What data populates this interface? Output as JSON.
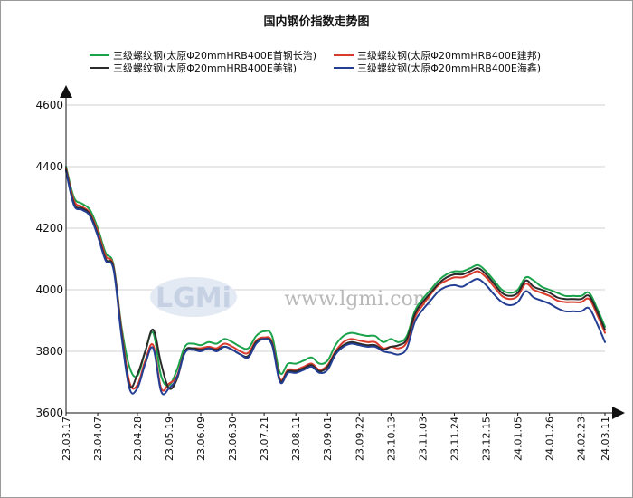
{
  "chart_data": {
    "type": "line",
    "title": "国内钢价指数走势图",
    "ylim": [
      3600,
      4600
    ],
    "yticks": [
      "3600",
      "3800",
      "4000",
      "4200",
      "4400",
      "4600"
    ],
    "x_tick_labels": [
      "23.03.17",
      "23.04.07",
      "23.04.28",
      "23.05.19",
      "23.06.09",
      "23.06.30",
      "23.07.21",
      "23.08.11",
      "23.09.01",
      "23.09.22",
      "23.10.13",
      "23.11.03",
      "23.11.24",
      "23.12.15",
      "24.01.05",
      "24.01.26",
      "24.02.23",
      "24.03.11"
    ],
    "grid": "horizontal",
    "legend_position": "top",
    "x": [
      "23.03.17",
      "23.03.22",
      "23.03.27",
      "23.04.01",
      "23.04.07",
      "23.04.11",
      "23.04.15",
      "23.04.20",
      "23.04.24",
      "23.04.28",
      "23.05.03",
      "23.05.08",
      "23.05.13",
      "23.05.19",
      "23.05.23",
      "23.05.28",
      "23.06.03",
      "23.06.09",
      "23.06.14",
      "23.06.19",
      "23.06.25",
      "23.06.30",
      "23.07.05",
      "23.07.10",
      "23.07.15",
      "23.07.21",
      "23.07.25",
      "23.08.01",
      "23.08.06",
      "23.08.11",
      "23.08.16",
      "23.08.21",
      "23.08.26",
      "23.09.01",
      "23.09.06",
      "23.09.11",
      "23.09.17",
      "23.09.22",
      "23.09.27",
      "23.10.03",
      "23.10.08",
      "23.10.13",
      "23.10.18",
      "23.10.23",
      "23.10.29",
      "23.11.03",
      "23.11.08",
      "23.11.14",
      "23.11.19",
      "23.11.24",
      "23.11.29",
      "23.12.05",
      "23.12.10",
      "23.12.15",
      "23.12.20",
      "23.12.25",
      "23.12.31",
      "24.01.05",
      "24.01.10",
      "24.01.15",
      "24.01.21",
      "24.01.26",
      "24.02.01",
      "24.02.06",
      "24.02.17",
      "24.02.23",
      "24.02.28",
      "24.03.04",
      "24.03.11"
    ],
    "series": [
      {
        "name": "三级螺纹钢(太原Φ20mmHRB400E首钢长治)",
        "color": "#1aa34a",
        "values": [
          4400,
          4300,
          4280,
          4260,
          4200,
          4120,
          4080,
          3880,
          3750,
          3720,
          3800,
          3860,
          3720,
          3690,
          3740,
          3815,
          3825,
          3820,
          3830,
          3825,
          3840,
          3830,
          3815,
          3810,
          3850,
          3865,
          3850,
          3730,
          3760,
          3760,
          3770,
          3780,
          3760,
          3770,
          3820,
          3850,
          3860,
          3855,
          3850,
          3850,
          3830,
          3840,
          3830,
          3850,
          3930,
          3970,
          4000,
          4030,
          4050,
          4060,
          4060,
          4070,
          4080,
          4060,
          4030,
          4000,
          3990,
          4000,
          4040,
          4030,
          4010,
          4000,
          3990,
          3980,
          3980,
          3980,
          3990,
          3940,
          3880
        ]
      },
      {
        "name": "三级螺纹钢(太原Φ20mmHRB400E建邦)",
        "color": "#d93a2b",
        "values": [
          4395,
          4290,
          4270,
          4250,
          4190,
          4110,
          4075,
          3870,
          3700,
          3690,
          3770,
          3820,
          3680,
          3695,
          3720,
          3800,
          3810,
          3810,
          3815,
          3810,
          3825,
          3815,
          3800,
          3795,
          3835,
          3845,
          3830,
          3710,
          3740,
          3740,
          3750,
          3760,
          3740,
          3755,
          3800,
          3830,
          3840,
          3835,
          3830,
          3830,
          3810,
          3815,
          3810,
          3830,
          3910,
          3950,
          3985,
          4015,
          4030,
          4040,
          4040,
          4050,
          4060,
          4040,
          4010,
          3980,
          3970,
          3980,
          4020,
          4000,
          3990,
          3980,
          3965,
          3960,
          3960,
          3960,
          3970,
          3920,
          3860
        ]
      },
      {
        "name": "三级螺纹钢(太原Φ20mmHRB400E美锦)",
        "color": "#2b2b2b",
        "values": [
          4390,
          4280,
          4265,
          4245,
          4180,
          4100,
          4070,
          3860,
          3690,
          3725,
          3800,
          3870,
          3760,
          3680,
          3710,
          3800,
          3810,
          3805,
          3810,
          3805,
          3815,
          3805,
          3790,
          3785,
          3830,
          3840,
          3825,
          3705,
          3735,
          3735,
          3745,
          3755,
          3735,
          3750,
          3795,
          3820,
          3830,
          3825,
          3820,
          3820,
          3805,
          3815,
          3820,
          3840,
          3920,
          3960,
          3990,
          4020,
          4040,
          4050,
          4050,
          4060,
          4070,
          4050,
          4020,
          3990,
          3980,
          3990,
          4030,
          4010,
          4000,
          3990,
          3975,
          3970,
          3970,
          3970,
          3980,
          3930,
          3870
        ]
      },
      {
        "name": "三级螺纹钢(太原Φ20mmHRB400E海鑫)",
        "color": "#233e93",
        "values": [
          4385,
          4275,
          4260,
          4240,
          4175,
          4095,
          4065,
          3850,
          3680,
          3680,
          3760,
          3810,
          3670,
          3680,
          3715,
          3795,
          3805,
          3800,
          3810,
          3800,
          3815,
          3805,
          3790,
          3780,
          3825,
          3840,
          3820,
          3700,
          3730,
          3730,
          3740,
          3750,
          3730,
          3740,
          3790,
          3815,
          3825,
          3820,
          3815,
          3815,
          3800,
          3795,
          3790,
          3810,
          3895,
          3935,
          3965,
          3995,
          4010,
          4015,
          4010,
          4025,
          4035,
          4015,
          3985,
          3960,
          3950,
          3960,
          3995,
          3975,
          3965,
          3955,
          3940,
          3930,
          3930,
          3930,
          3940,
          3890,
          3830
        ]
      }
    ]
  },
  "watermark": {
    "logo": "LGMi",
    "url": "www.lgmi.com"
  }
}
